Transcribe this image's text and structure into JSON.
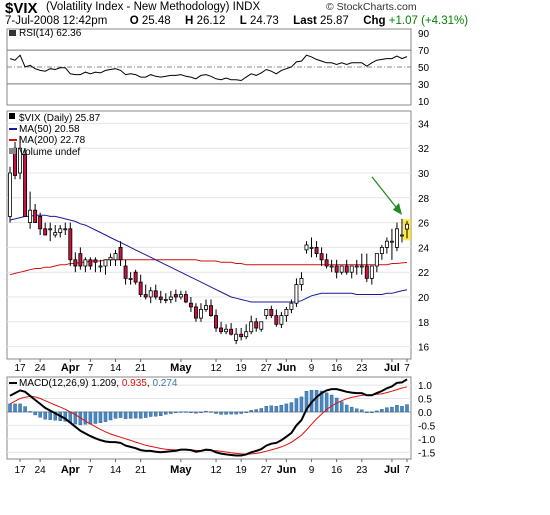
{
  "header": {
    "ticker": "$VIX",
    "name": "(Volatility Index - New Methodology)",
    "exchange": "INDX",
    "copyright": "© StockCharts.com",
    "date": "7-Jul-2008 12:42pm",
    "open_label": "O",
    "open": "25.48",
    "high_label": "H",
    "high": "26.12",
    "low_label": "L",
    "low": "24.73",
    "last_label": "Last",
    "last": "25.87",
    "chg_label": "Chg",
    "chg": "+1.07 (+4.31%)",
    "chg_color": "#008000"
  },
  "rsi_panel": {
    "legend": "RSI(14) 62.36",
    "ticks": [
      "90",
      "70",
      "50",
      "30",
      "10"
    ]
  },
  "price_panel": {
    "legend_main": "$VIX (Daily) 25.87",
    "legend_ma50": "MA(50) 20.58",
    "legend_ma200": "MA(200) 22.78",
    "legend_volume": "Volume undef",
    "ticks": [
      "34",
      "32",
      "30",
      "28",
      "26",
      "24",
      "22",
      "20",
      "18",
      "16"
    ],
    "colors": {
      "up": "#ffffff",
      "down": "#c8143c",
      "ma50": "#1a1a9a",
      "ma200": "#cc1111",
      "arrow": "#228b22",
      "highlight": "#ffe000"
    }
  },
  "macd_panel": {
    "legend_prefix": "MACD(12,26,9)",
    "macd": "1.209",
    "signal": "0.935",
    "hist": "0.274",
    "ticks": [
      "1.0",
      "0.5",
      "0.0",
      "-0.5",
      "-1.0",
      "-1.5"
    ],
    "colors": {
      "macd": "#000000",
      "signal": "#dd1111",
      "hist": "#4a88c0"
    }
  },
  "x_axis": {
    "labels": [
      "17",
      "24",
      "Apr",
      "7",
      "14",
      "21",
      "May",
      "12",
      "19",
      "27",
      "Jun",
      "9",
      "16",
      "23",
      "Jul",
      "7"
    ],
    "bold": [
      "Apr",
      "May",
      "Jun",
      "Jul"
    ]
  },
  "chart_data": {
    "type": "candlestick",
    "title": "$VIX (Volatility Index - New Methodology)",
    "dates": [
      "2008-03-13",
      "2008-03-14",
      "2008-03-17",
      "2008-03-18",
      "2008-03-19",
      "2008-03-20",
      "2008-03-24",
      "2008-03-25",
      "2008-03-26",
      "2008-03-27",
      "2008-03-28",
      "2008-03-31",
      "2008-04-01",
      "2008-04-02",
      "2008-04-03",
      "2008-04-04",
      "2008-04-07",
      "2008-04-08",
      "2008-04-09",
      "2008-04-10",
      "2008-04-11",
      "2008-04-14",
      "2008-04-15",
      "2008-04-16",
      "2008-04-17",
      "2008-04-18",
      "2008-04-21",
      "2008-04-22",
      "2008-04-23",
      "2008-04-24",
      "2008-04-25",
      "2008-04-28",
      "2008-04-29",
      "2008-04-30",
      "2008-05-01",
      "2008-05-02",
      "2008-05-05",
      "2008-05-06",
      "2008-05-07",
      "2008-05-08",
      "2008-05-09",
      "2008-05-12",
      "2008-05-13",
      "2008-05-14",
      "2008-05-15",
      "2008-05-16",
      "2008-05-19",
      "2008-05-20",
      "2008-05-21",
      "2008-05-22",
      "2008-05-23",
      "2008-05-27",
      "2008-05-28",
      "2008-05-29",
      "2008-05-30",
      "2008-06-02",
      "2008-06-03",
      "2008-06-04",
      "2008-06-05",
      "2008-06-06",
      "2008-06-09",
      "2008-06-10",
      "2008-06-11",
      "2008-06-12",
      "2008-06-13",
      "2008-06-16",
      "2008-06-17",
      "2008-06-18",
      "2008-06-19",
      "2008-06-20",
      "2008-06-23",
      "2008-06-24",
      "2008-06-25",
      "2008-06-26",
      "2008-06-27",
      "2008-06-30",
      "2008-07-01",
      "2008-07-02",
      "2008-07-03",
      "2008-07-07"
    ],
    "open": [
      26.5,
      32.0,
      30.0,
      31.5,
      26.0,
      27.0,
      26.5,
      25.5,
      25.5,
      25.0,
      25.2,
      25.5,
      25.5,
      23.0,
      23.5,
      22.5,
      23.0,
      23.0,
      22.5,
      22.5,
      23.0,
      23.0,
      24.0,
      22.5,
      21.5,
      22.0,
      21.2,
      20.2,
      20.0,
      20.5,
      20.0,
      19.8,
      19.8,
      20.2,
      20.0,
      20.2,
      19.5,
      19.2,
      18.3,
      19.0,
      19.3,
      18.5,
      17.5,
      17.2,
      17.4,
      16.5,
      17.0,
      16.8,
      17.2,
      18.0,
      17.4,
      18.5,
      19.0,
      18.5,
      17.8,
      18.5,
      19.0,
      19.5,
      21.0,
      23.8,
      24.0,
      24.0,
      23.5,
      23.0,
      22.5,
      22.5,
      22.0,
      22.5,
      22.0,
      22.5,
      22.5,
      22.5,
      21.5,
      22.5,
      23.5,
      24.0,
      24.5,
      24.0,
      25.0,
      25.48
    ],
    "high": [
      30.5,
      32.5,
      33.0,
      32.0,
      28.5,
      27.5,
      26.8,
      26.0,
      26.0,
      25.8,
      25.8,
      26.0,
      26.0,
      23.6,
      24.0,
      23.2,
      23.2,
      23.2,
      23.0,
      23.0,
      23.5,
      23.8,
      24.5,
      23.0,
      22.0,
      22.2,
      21.8,
      21.0,
      20.8,
      21.0,
      20.5,
      20.3,
      20.5,
      20.6,
      20.5,
      20.5,
      20.0,
      19.5,
      19.5,
      19.8,
      19.8,
      19.0,
      18.0,
      17.8,
      17.9,
      17.5,
      17.5,
      17.8,
      18.5,
      18.3,
      18.0,
      19.0,
      19.3,
      19.0,
      18.8,
      19.2,
      19.8,
      21.5,
      22.0,
      24.5,
      24.8,
      24.5,
      24.0,
      23.5,
      23.0,
      23.0,
      22.5,
      23.0,
      22.5,
      23.0,
      23.5,
      23.5,
      22.5,
      23.5,
      24.2,
      24.8,
      25.5,
      26.0,
      26.3,
      26.12
    ],
    "low": [
      26.0,
      29.5,
      29.5,
      26.5,
      25.5,
      26.0,
      25.0,
      25.0,
      24.5,
      24.8,
      24.8,
      25.0,
      22.5,
      22.0,
      22.2,
      22.0,
      22.2,
      22.0,
      22.0,
      21.8,
      22.5,
      22.5,
      22.5,
      21.0,
      21.0,
      21.0,
      20.0,
      19.8,
      19.5,
      19.8,
      19.5,
      19.5,
      19.5,
      19.6,
      19.8,
      19.5,
      18.8,
      18.0,
      18.0,
      18.8,
      18.4,
      17.2,
      17.0,
      17.0,
      16.9,
      16.2,
      16.5,
      16.6,
      17.0,
      17.2,
      17.2,
      18.2,
      18.3,
      17.6,
      17.5,
      18.0,
      18.7,
      19.2,
      20.5,
      23.5,
      23.2,
      23.2,
      22.5,
      22.3,
      22.0,
      21.5,
      21.8,
      21.8,
      21.5,
      21.8,
      21.8,
      21.2,
      21.0,
      22.0,
      23.0,
      23.5,
      23.0,
      23.7,
      24.4,
      24.73
    ],
    "close": [
      30.0,
      29.8,
      32.0,
      26.5,
      27.0,
      26.0,
      25.5,
      25.0,
      25.5,
      25.2,
      25.5,
      25.5,
      23.0,
      22.5,
      22.5,
      23.0,
      22.5,
      22.8,
      22.5,
      23.0,
      23.2,
      23.5,
      23.0,
      21.5,
      21.5,
      21.2,
      20.2,
      20.0,
      20.5,
      20.0,
      19.8,
      19.8,
      20.0,
      20.0,
      20.2,
      19.6,
      19.2,
      18.3,
      19.0,
      19.3,
      18.5,
      17.5,
      17.2,
      17.4,
      17.0,
      17.0,
      16.8,
      17.2,
      18.0,
      17.5,
      18.0,
      19.0,
      18.5,
      17.8,
      18.5,
      19.0,
      19.5,
      21.0,
      21.5,
      24.2,
      24.0,
      23.5,
      23.0,
      22.5,
      22.5,
      22.0,
      22.5,
      22.0,
      22.5,
      22.5,
      22.5,
      21.5,
      22.5,
      23.5,
      24.0,
      24.5,
      24.5,
      25.5,
      25.0,
      25.87
    ],
    "ma50": [
      26.2,
      26.3,
      26.4,
      26.5,
      26.5,
      26.6,
      26.6,
      26.6,
      26.5,
      26.5,
      26.4,
      26.3,
      26.2,
      26.1,
      25.9,
      25.8,
      25.6,
      25.4,
      25.2,
      25.0,
      24.8,
      24.6,
      24.4,
      24.2,
      24.0,
      23.8,
      23.6,
      23.4,
      23.2,
      23.0,
      22.8,
      22.6,
      22.4,
      22.2,
      22.0,
      21.8,
      21.6,
      21.4,
      21.2,
      21.0,
      20.8,
      20.6,
      20.4,
      20.2,
      20.0,
      19.9,
      19.8,
      19.7,
      19.6,
      19.6,
      19.6,
      19.6,
      19.6,
      19.6,
      19.6,
      19.6,
      19.6,
      19.6,
      19.7,
      19.9,
      20.1,
      20.2,
      20.3,
      20.3,
      20.3,
      20.3,
      20.3,
      20.3,
      20.3,
      20.2,
      20.2,
      20.2,
      20.2,
      20.2,
      20.2,
      20.3,
      20.3,
      20.4,
      20.5,
      20.58
    ],
    "ma200": [
      21.8,
      21.9,
      22.0,
      22.1,
      22.2,
      22.3,
      22.3,
      22.4,
      22.4,
      22.5,
      22.6,
      22.6,
      22.7,
      22.7,
      22.8,
      22.8,
      22.9,
      22.9,
      22.9,
      23.0,
      23.0,
      23.0,
      23.0,
      23.0,
      23.0,
      23.0,
      23.0,
      23.0,
      23.0,
      23.0,
      23.0,
      23.0,
      23.0,
      23.0,
      23.0,
      23.0,
      23.0,
      23.0,
      22.9,
      22.9,
      22.9,
      22.9,
      22.8,
      22.8,
      22.8,
      22.7,
      22.7,
      22.6,
      22.6,
      22.6,
      22.6,
      22.6,
      22.6,
      22.6,
      22.6,
      22.6,
      22.6,
      22.6,
      22.6,
      22.6,
      22.6,
      22.6,
      22.6,
      22.6,
      22.6,
      22.6,
      22.6,
      22.6,
      22.6,
      22.6,
      22.6,
      22.6,
      22.6,
      22.6,
      22.6,
      22.6,
      22.7,
      22.7,
      22.75,
      22.78
    ],
    "rsi": [
      60,
      58,
      64,
      50,
      52,
      48,
      46,
      45,
      48,
      47,
      49,
      49,
      42,
      41,
      41,
      44,
      42,
      44,
      43,
      46,
      47,
      48,
      46,
      41,
      42,
      41,
      38,
      38,
      41,
      39,
      38,
      39,
      40,
      40,
      41,
      39,
      38,
      36,
      40,
      41,
      39,
      36,
      35,
      37,
      35,
      35,
      34,
      38,
      42,
      40,
      43,
      47,
      45,
      42,
      46,
      48,
      50,
      56,
      57,
      64,
      62,
      59,
      57,
      55,
      55,
      53,
      55,
      53,
      55,
      55,
      55,
      51,
      55,
      58,
      59,
      60,
      60,
      63,
      60,
      62.36
    ],
    "macd": [
      0.6,
      0.7,
      0.8,
      0.75,
      0.6,
      0.45,
      0.3,
      0.15,
      0.05,
      -0.05,
      -0.15,
      -0.25,
      -0.4,
      -0.55,
      -0.7,
      -0.8,
      -0.9,
      -0.98,
      -1.05,
      -1.1,
      -1.12,
      -1.12,
      -1.15,
      -1.25,
      -1.3,
      -1.35,
      -1.42,
      -1.45,
      -1.45,
      -1.48,
      -1.5,
      -1.48,
      -1.46,
      -1.44,
      -1.4,
      -1.4,
      -1.42,
      -1.48,
      -1.45,
      -1.4,
      -1.42,
      -1.5,
      -1.55,
      -1.58,
      -1.6,
      -1.62,
      -1.62,
      -1.58,
      -1.5,
      -1.45,
      -1.38,
      -1.25,
      -1.18,
      -1.15,
      -1.05,
      -0.92,
      -0.78,
      -0.5,
      -0.3,
      0.1,
      0.35,
      0.55,
      0.7,
      0.8,
      0.85,
      0.85,
      0.8,
      0.75,
      0.72,
      0.7,
      0.7,
      0.62,
      0.62,
      0.7,
      0.78,
      0.88,
      0.95,
      1.08,
      1.1,
      1.209
    ],
    "signal": [
      0.3,
      0.4,
      0.5,
      0.55,
      0.58,
      0.56,
      0.5,
      0.42,
      0.34,
      0.26,
      0.18,
      0.1,
      0.0,
      -0.1,
      -0.22,
      -0.34,
      -0.45,
      -0.55,
      -0.65,
      -0.74,
      -0.82,
      -0.88,
      -0.94,
      -1.0,
      -1.06,
      -1.12,
      -1.18,
      -1.24,
      -1.28,
      -1.32,
      -1.36,
      -1.39,
      -1.4,
      -1.41,
      -1.41,
      -1.41,
      -1.41,
      -1.43,
      -1.44,
      -1.43,
      -1.43,
      -1.44,
      -1.46,
      -1.49,
      -1.52,
      -1.54,
      -1.56,
      -1.57,
      -1.56,
      -1.54,
      -1.51,
      -1.46,
      -1.41,
      -1.36,
      -1.3,
      -1.22,
      -1.13,
      -1.0,
      -0.86,
      -0.67,
      -0.46,
      -0.26,
      -0.08,
      0.09,
      0.22,
      0.33,
      0.42,
      0.49,
      0.54,
      0.58,
      0.62,
      0.63,
      0.64,
      0.66,
      0.68,
      0.72,
      0.77,
      0.83,
      0.89,
      0.935
    ],
    "ylim_price": [
      15,
      35
    ],
    "ylim_rsi": [
      5,
      95
    ],
    "ylim_macd": [
      -1.75,
      1.3
    ],
    "annotation": {
      "type": "arrow",
      "target_date": "2008-07-03",
      "highlight_date": "2008-07-07"
    }
  }
}
